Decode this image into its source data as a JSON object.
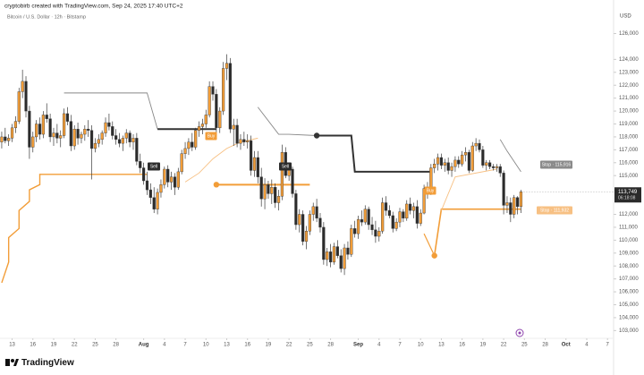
{
  "header": {
    "title": "cryptobirb created with TradingView.com, Sep 24, 2025 17:40 UTC+2"
  },
  "logo": "TradingView",
  "chart_data": {
    "type": "candlestick",
    "subtitle": "Bitcoin / U.S. Dollar · 12h · Bitstamp",
    "y_axis_label": "USD",
    "up_color": "#f29d38",
    "down_color": "#2b2b2b",
    "xlim": [
      -0.5,
      176.5
    ],
    "ylim": [
      102400,
      128600
    ],
    "xticks": [
      {
        "value": 3,
        "label": "13"
      },
      {
        "value": 9,
        "label": "16"
      },
      {
        "value": 15,
        "label": "19"
      },
      {
        "value": 21,
        "label": "22"
      },
      {
        "value": 27,
        "label": "25"
      },
      {
        "value": 33,
        "label": "28"
      },
      {
        "value": 41,
        "label": "Aug"
      },
      {
        "value": 47,
        "label": "4"
      },
      {
        "value": 53,
        "label": "7"
      },
      {
        "value": 59,
        "label": "10"
      },
      {
        "value": 65,
        "label": "13"
      },
      {
        "value": 71,
        "label": "16"
      },
      {
        "value": 77,
        "label": "19"
      },
      {
        "value": 83,
        "label": "22"
      },
      {
        "value": 89,
        "label": "25"
      },
      {
        "value": 95,
        "label": "28"
      },
      {
        "value": 103,
        "label": "Sep"
      },
      {
        "value": 109,
        "label": "4"
      },
      {
        "value": 115,
        "label": "7"
      },
      {
        "value": 121,
        "label": "10"
      },
      {
        "value": 127,
        "label": "13"
      },
      {
        "value": 133,
        "label": "16"
      },
      {
        "value": 139,
        "label": "19"
      },
      {
        "value": 145,
        "label": "22"
      },
      {
        "value": 151,
        "label": "25"
      },
      {
        "value": 157,
        "label": "28"
      },
      {
        "value": 163,
        "label": "Oct"
      },
      {
        "value": 169,
        "label": "4"
      },
      {
        "value": 175,
        "label": "7"
      }
    ],
    "yticks": [
      {
        "value": 126000,
        "label": "126,000"
      },
      {
        "value": 124000,
        "label": "124,000"
      },
      {
        "value": 123000,
        "label": "123,000"
      },
      {
        "value": 122000,
        "label": "122,000"
      },
      {
        "value": 121000,
        "label": "121,000"
      },
      {
        "value": 120000,
        "label": "120,000"
      },
      {
        "value": 119000,
        "label": "119,000"
      },
      {
        "value": 118000,
        "label": "118,000"
      },
      {
        "value": 117000,
        "label": "117,000"
      },
      {
        "value": 116000,
        "label": "116,000"
      },
      {
        "value": 115000,
        "label": "115,000"
      },
      {
        "value": 112000,
        "label": "112,000"
      },
      {
        "value": 111000,
        "label": "111,000"
      },
      {
        "value": 110000,
        "label": "110,000"
      },
      {
        "value": 109000,
        "label": "109,000"
      },
      {
        "value": 108000,
        "label": "108,000"
      },
      {
        "value": 107000,
        "label": "107,000"
      },
      {
        "value": 106000,
        "label": "106,000"
      },
      {
        "value": 105000,
        "label": "105,000"
      },
      {
        "value": 104000,
        "label": "104,000"
      },
      {
        "value": 103000,
        "label": "103,000"
      }
    ],
    "last_price": {
      "value": 113749,
      "label": "113,749"
    },
    "countdown": "06:18:08",
    "ohlc": [
      [
        117600,
        118400,
        117100,
        118000
      ],
      [
        118000,
        118700,
        117500,
        117700
      ],
      [
        117700,
        118200,
        117300,
        117900
      ],
      [
        117900,
        119000,
        117600,
        118700
      ],
      [
        118700,
        119600,
        118300,
        119200
      ],
      [
        119200,
        121800,
        119000,
        121500
      ],
      [
        121500,
        123200,
        121000,
        122300
      ],
      [
        122300,
        122700,
        119500,
        120000
      ],
      [
        120000,
        120400,
        116300,
        117200
      ],
      [
        117200,
        118400,
        116800,
        118000
      ],
      [
        118000,
        119300,
        117600,
        119000
      ],
      [
        119000,
        119500,
        117800,
        118200
      ],
      [
        118200,
        120000,
        117900,
        119700
      ],
      [
        119700,
        120600,
        119100,
        119400
      ],
      [
        119400,
        119800,
        117600,
        118000
      ],
      [
        118000,
        118700,
        117300,
        118300
      ],
      [
        118300,
        119000,
        117500,
        117900
      ],
      [
        117900,
        118500,
        117200,
        118100
      ],
      [
        118100,
        120200,
        117900,
        119800
      ],
      [
        119800,
        120300,
        118900,
        119200
      ],
      [
        119200,
        119700,
        116900,
        117300
      ],
      [
        117300,
        118900,
        117000,
        118600
      ],
      [
        118600,
        119100,
        117400,
        117900
      ],
      [
        117900,
        118400,
        117500,
        118200
      ],
      [
        118200,
        118900,
        117700,
        118600
      ],
      [
        118600,
        119300,
        118000,
        118500
      ],
      [
        118500,
        118900,
        114700,
        117100
      ],
      [
        117100,
        117900,
        116800,
        117500
      ],
      [
        117500,
        118200,
        117200,
        117800
      ],
      [
        117800,
        118500,
        117400,
        118300
      ],
      [
        118300,
        119500,
        118000,
        119100
      ],
      [
        119100,
        119800,
        118500,
        118800
      ],
      [
        118800,
        119200,
        117800,
        118100
      ],
      [
        118100,
        118600,
        117400,
        117800
      ],
      [
        117800,
        118300,
        117200,
        117500
      ],
      [
        117500,
        118100,
        116900,
        117900
      ],
      [
        117900,
        118600,
        117500,
        118300
      ],
      [
        118300,
        118500,
        117200,
        117600
      ],
      [
        117600,
        118200,
        117000,
        117900
      ],
      [
        117900,
        118300,
        115800,
        116100
      ],
      [
        116100,
        116700,
        115200,
        115600
      ],
      [
        115600,
        116000,
        114300,
        114600
      ],
      [
        114600,
        115300,
        113500,
        113900
      ],
      [
        113900,
        114400,
        112800,
        113300
      ],
      [
        113300,
        114100,
        112100,
        112400
      ],
      [
        112400,
        114000,
        112000,
        113700
      ],
      [
        113700,
        114700,
        113300,
        114300
      ],
      [
        114300,
        115700,
        114000,
        115500
      ],
      [
        115500,
        115800,
        114100,
        114500
      ],
      [
        114500,
        115300,
        113900,
        114900
      ],
      [
        114900,
        115200,
        113500,
        114100
      ],
      [
        114100,
        115600,
        113900,
        115300
      ],
      [
        115300,
        117000,
        115100,
        116700
      ],
      [
        116700,
        117600,
        116300,
        117100
      ],
      [
        117100,
        117900,
        116600,
        117600
      ],
      [
        117600,
        118300,
        116900,
        117200
      ],
      [
        117200,
        118700,
        117000,
        118500
      ],
      [
        118500,
        119200,
        118000,
        118800
      ],
      [
        118800,
        119400,
        118200,
        119000
      ],
      [
        119000,
        120100,
        118700,
        119700
      ],
      [
        119700,
        122300,
        119500,
        121900
      ],
      [
        121900,
        122300,
        120800,
        121300
      ],
      [
        121300,
        121700,
        118200,
        118700
      ],
      [
        118700,
        120300,
        118300,
        120000
      ],
      [
        120000,
        123800,
        119700,
        123300
      ],
      [
        123300,
        124400,
        122400,
        123700
      ],
      [
        123700,
        124100,
        118300,
        118600
      ],
      [
        118600,
        119400,
        117300,
        118900
      ],
      [
        118900,
        119400,
        117200,
        117500
      ],
      [
        117500,
        118200,
        117000,
        117800
      ],
      [
        117800,
        118400,
        117300,
        117600
      ],
      [
        117600,
        118200,
        117100,
        117700
      ],
      [
        117700,
        118100,
        115000,
        115400
      ],
      [
        115400,
        116900,
        114900,
        116400
      ],
      [
        116400,
        116900,
        114400,
        114900
      ],
      [
        114900,
        115600,
        112600,
        113200
      ],
      [
        113200,
        114800,
        112400,
        114300
      ],
      [
        114300,
        114600,
        113200,
        113600
      ],
      [
        113600,
        114700,
        112800,
        114100
      ],
      [
        114100,
        114400,
        112500,
        112900
      ],
      [
        112900,
        113900,
        112300,
        113400
      ],
      [
        113400,
        117400,
        113100,
        116800
      ],
      [
        116800,
        117200,
        114800,
        115000
      ],
      [
        115000,
        115800,
        114600,
        115500
      ],
      [
        115500,
        115700,
        113300,
        113600
      ],
      [
        113600,
        113900,
        110800,
        111200
      ],
      [
        111200,
        112400,
        110600,
        112000
      ],
      [
        112000,
        112300,
        109600,
        109900
      ],
      [
        109900,
        111100,
        109300,
        110700
      ],
      [
        110700,
        112300,
        110400,
        112000
      ],
      [
        112000,
        112900,
        111500,
        112600
      ],
      [
        112600,
        113200,
        111400,
        111700
      ],
      [
        111700,
        112100,
        110600,
        111000
      ],
      [
        111000,
        111400,
        108100,
        108500
      ],
      [
        108500,
        109400,
        108000,
        109100
      ],
      [
        109100,
        109700,
        107900,
        108300
      ],
      [
        108300,
        109800,
        108100,
        109500
      ],
      [
        109500,
        110000,
        108600,
        108800
      ],
      [
        108800,
        109300,
        107500,
        107800
      ],
      [
        107800,
        109700,
        107300,
        109400
      ],
      [
        109400,
        109900,
        108500,
        108900
      ],
      [
        108900,
        111200,
        108700,
        110900
      ],
      [
        110900,
        111500,
        110200,
        110500
      ],
      [
        110500,
        111900,
        110100,
        111600
      ],
      [
        111600,
        112300,
        111100,
        111400
      ],
      [
        111400,
        112700,
        111200,
        112400
      ],
      [
        112400,
        112600,
        110800,
        111200
      ],
      [
        111200,
        111800,
        110400,
        110800
      ],
      [
        110800,
        111500,
        109800,
        110300
      ],
      [
        110300,
        111000,
        109900,
        110700
      ],
      [
        110700,
        113300,
        110500,
        112900
      ],
      [
        112900,
        113400,
        111900,
        112300
      ],
      [
        112300,
        112700,
        111700,
        111900
      ],
      [
        111900,
        112200,
        110600,
        110900
      ],
      [
        110900,
        111700,
        110700,
        111400
      ],
      [
        111400,
        112500,
        111000,
        112200
      ],
      [
        112200,
        112400,
        111400,
        111700
      ],
      [
        111700,
        113100,
        111500,
        112800
      ],
      [
        112800,
        113300,
        112000,
        112300
      ],
      [
        112300,
        112900,
        111700,
        112600
      ],
      [
        112600,
        113100,
        110900,
        111300
      ],
      [
        111300,
        112400,
        111100,
        112100
      ],
      [
        112100,
        114300,
        112000,
        114000
      ],
      [
        114000,
        114500,
        113200,
        113600
      ],
      [
        113600,
        115900,
        113500,
        115600
      ],
      [
        115600,
        116300,
        115200,
        115900
      ],
      [
        115900,
        116700,
        115400,
        116400
      ],
      [
        116400,
        116700,
        115500,
        115800
      ],
      [
        115800,
        116300,
        115300,
        116000
      ],
      [
        116000,
        116400,
        115100,
        115400
      ],
      [
        115400,
        116000,
        114900,
        115700
      ],
      [
        115700,
        116500,
        115300,
        116200
      ],
      [
        116200,
        116500,
        115600,
        115900
      ],
      [
        115900,
        116900,
        115700,
        116600
      ],
      [
        116600,
        117200,
        116100,
        116800
      ],
      [
        116800,
        117000,
        115200,
        115400
      ],
      [
        115400,
        117600,
        115300,
        117300
      ],
      [
        117300,
        117900,
        116900,
        117500
      ],
      [
        117500,
        117800,
        116800,
        117000
      ],
      [
        117000,
        117300,
        115600,
        115800
      ],
      [
        115800,
        116200,
        115400,
        116000
      ],
      [
        116000,
        116200,
        115500,
        115700
      ],
      [
        115700,
        115900,
        115400,
        115600
      ],
      [
        115600,
        115900,
        115300,
        115700
      ],
      [
        115700,
        115900,
        114900,
        115200
      ],
      [
        115200,
        115400,
        112000,
        112700
      ],
      [
        112700,
        113400,
        112100,
        112900
      ],
      [
        112900,
        113300,
        111400,
        112000
      ],
      [
        112000,
        113500,
        111700,
        113300
      ],
      [
        113300,
        113400,
        112000,
        112600
      ],
      [
        112600,
        113900,
        112100,
        113749
      ]
    ],
    "lines": [
      {
        "color": "#f29d38",
        "width": 1.4,
        "dot": false,
        "x": [
          0,
          2,
          2,
          5,
          5,
          8,
          8,
          11,
          11,
          42
        ],
        "values": [
          106700,
          108300,
          110200,
          110900,
          112300,
          113000,
          113900,
          114300,
          115100,
          115100
        ]
      },
      {
        "color": "#f7c083",
        "width": 0.9,
        "dot": false,
        "x": [
          53,
          57,
          61,
          65,
          69,
          74
        ],
        "values": [
          114500,
          115200,
          116300,
          117100,
          117600,
          117900
        ]
      },
      {
        "color": "#f29d38",
        "width": 2,
        "dot": true,
        "x": [
          62,
          89
        ],
        "values": [
          114300,
          114300
        ]
      },
      {
        "color": "#f29d38",
        "width": 1.2,
        "dot": false,
        "x": [
          122,
          125
        ],
        "values": [
          110500,
          108800
        ]
      },
      {
        "color": "#f29d38",
        "width": 1.6,
        "dot": true,
        "x": [
          125,
          127,
          150
        ],
        "values": [
          108800,
          112400,
          112400
        ]
      },
      {
        "color": "#f7c083",
        "width": 0.9,
        "dot": false,
        "x": [
          127,
          131,
          143
        ],
        "values": [
          112300,
          114900,
          115500
        ]
      },
      {
        "color": "#888888",
        "width": 0.9,
        "dot": false,
        "x": [
          18,
          42,
          45
        ],
        "values": [
          121400,
          121400,
          118600
        ]
      },
      {
        "color": "#333333",
        "width": 2,
        "dot": false,
        "x": [
          45,
          62
        ],
        "values": [
          118600,
          118600
        ]
      },
      {
        "color": "#888888",
        "width": 0.9,
        "dot": false,
        "x": [
          74,
          80,
          83,
          91
        ],
        "values": [
          120300,
          118200,
          118200,
          118100
        ]
      },
      {
        "color": "#333333",
        "width": 2,
        "dot": true,
        "x": [
          91,
          101,
          102,
          124
        ],
        "values": [
          118100,
          118100,
          115300,
          115300
        ]
      },
      {
        "color": "#888888",
        "width": 0.9,
        "dot": false,
        "x": [
          144,
          146,
          150
        ],
        "values": [
          117800,
          116900,
          115300
        ]
      }
    ],
    "annotations": [
      {
        "text": "Sell",
        "color": "#2b2b2b"
      },
      {
        "text": "Buy",
        "color": "#f29d38"
      },
      {
        "text": "Sell",
        "color": "#2b2b2b"
      },
      {
        "text": "Buy",
        "color": "#f29d38"
      },
      {
        "text": "Stop · 115,916",
        "color": "#8a8a8a"
      },
      {
        "text": "Stop · 111,932",
        "color": "#f7c083"
      }
    ]
  }
}
